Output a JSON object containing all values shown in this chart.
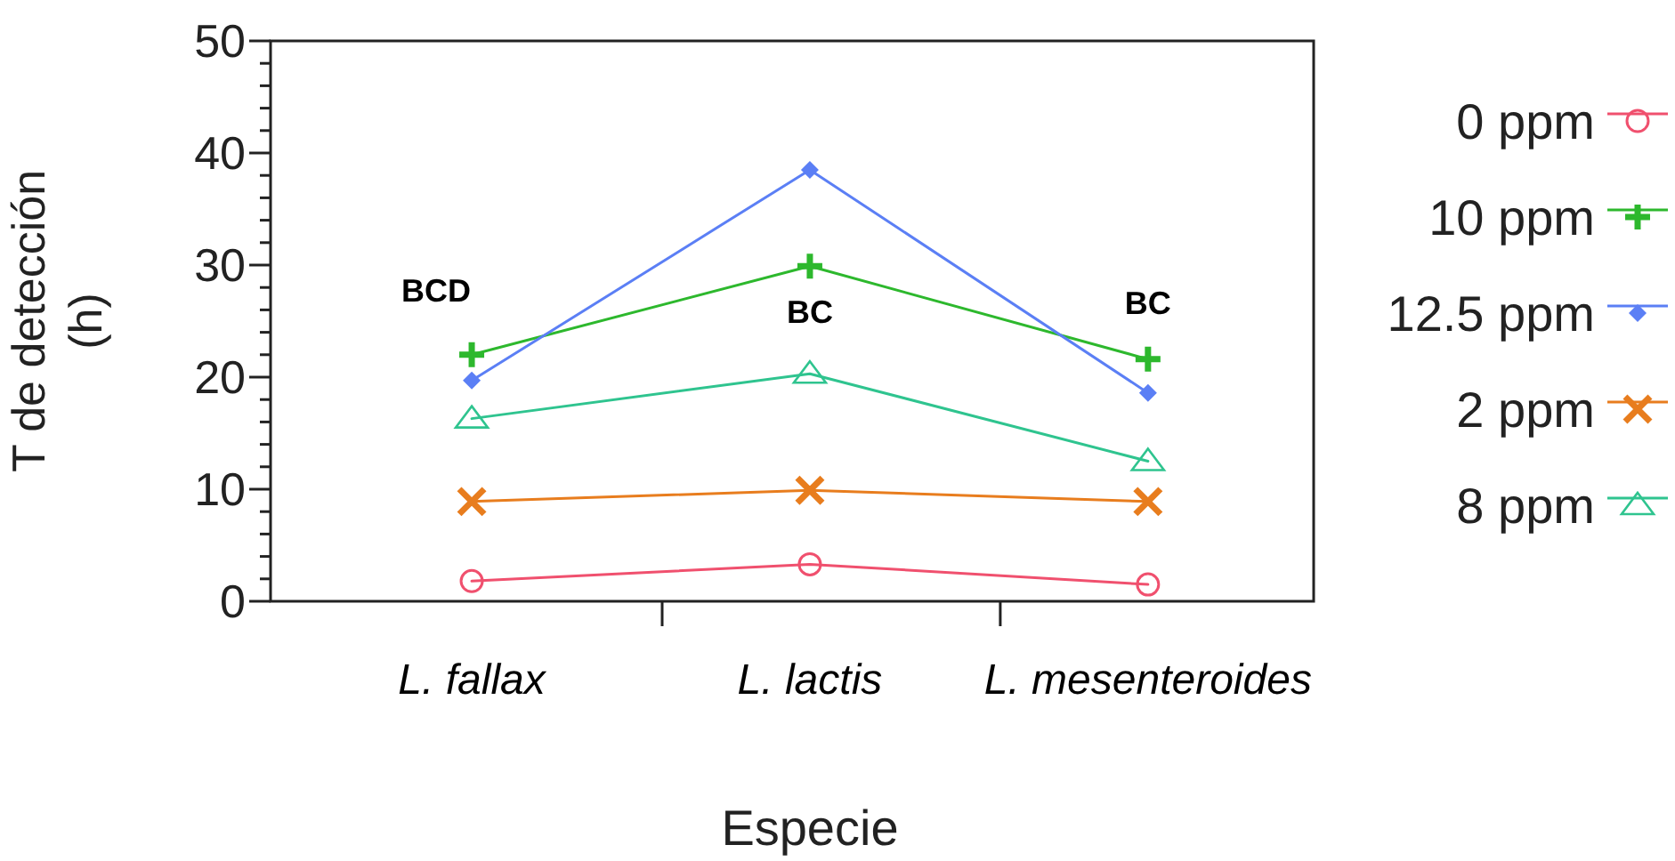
{
  "chart_data": {
    "type": "line",
    "xlabel": "Especie",
    "ylabel": "T de detección\n(h)",
    "categories": [
      "L. fallax",
      "L. lactis",
      "L. mesenteroides"
    ],
    "series": [
      {
        "name": "0 ppm",
        "color": "#f0506e",
        "marker": "circle",
        "values": [
          1.8,
          3.3,
          1.5
        ]
      },
      {
        "name": "10 ppm",
        "color": "#2db82d",
        "marker": "cross",
        "values": [
          22.0,
          29.9,
          21.6
        ]
      },
      {
        "name": "12.5 ppm",
        "color": "#5b7ff5",
        "marker": "diamond",
        "values": [
          19.7,
          38.5,
          18.6
        ]
      },
      {
        "name": "2 ppm",
        "color": "#e87d1e",
        "marker": "x",
        "values": [
          8.9,
          9.9,
          8.9
        ]
      },
      {
        "name": "8 ppm",
        "color": "#2fc48f",
        "marker": "triangle",
        "values": [
          16.3,
          20.3,
          12.5
        ]
      }
    ],
    "ylim": [
      0,
      50
    ],
    "yticks": [
      0,
      {
        "value": 2,
        "label": null
      },
      {
        "value": 4,
        "label": null
      },
      {
        "value": 6,
        "label": null
      },
      {
        "value": 8,
        "label": null
      },
      10,
      {
        "value": 12,
        "label": null
      },
      {
        "value": 14,
        "label": null
      },
      {
        "value": 16,
        "label": null
      },
      {
        "value": 18,
        "label": null
      },
      20,
      {
        "value": 22,
        "label": null
      },
      {
        "value": 24,
        "label": null
      },
      {
        "value": 26,
        "label": null
      },
      {
        "value": 28,
        "label": null
      },
      30,
      {
        "value": 32,
        "label": null
      },
      {
        "value": 34,
        "label": null
      },
      {
        "value": 36,
        "label": null
      },
      {
        "value": 38,
        "label": null
      },
      40,
      {
        "value": 42,
        "label": null
      },
      {
        "value": 44,
        "label": null
      },
      {
        "value": 46,
        "label": null
      },
      {
        "value": 48,
        "label": null
      },
      50
    ],
    "annotations": [
      "BCD",
      "BC",
      "BC"
    ],
    "legend": "right",
    "grid": false
  }
}
